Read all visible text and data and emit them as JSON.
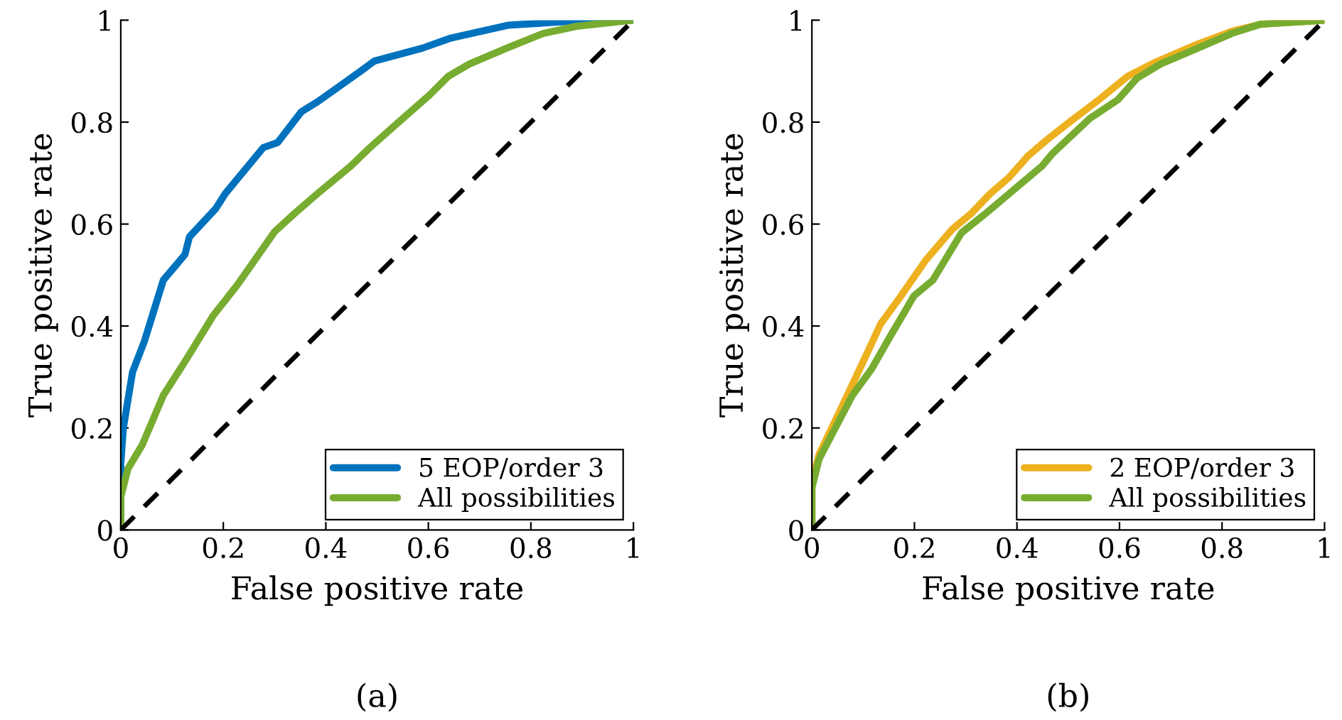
{
  "chart_data": [
    {
      "type": "line",
      "xlabel": "False positive rate",
      "ylabel": "True positive rate",
      "annotations": [
        "(a)"
      ],
      "xlim": [
        0,
        1
      ],
      "ylim": [
        0,
        1
      ],
      "xticks": [
        0,
        0.2,
        0.4,
        0.6,
        0.8,
        1
      ],
      "yticks": [
        0,
        0.2,
        0.4,
        0.6,
        0.8,
        1
      ],
      "grid": false,
      "legend": "bottom right",
      "marker": "none",
      "series": [
        {
          "name": "5 EOP/order 3",
          "color": "#0072bd",
          "line_style": "solid",
          "x": [
            0,
            0,
            0.005,
            0.023,
            0.046,
            0.083,
            0.125,
            0.134,
            0.185,
            0.204,
            0.278,
            0.306,
            0.352,
            0.384,
            0.426,
            0.468,
            0.495,
            0.588,
            0.644,
            0.755,
            0.866,
            1
          ],
          "values": [
            0,
            0.13,
            0.2,
            0.31,
            0.37,
            0.49,
            0.54,
            0.575,
            0.63,
            0.66,
            0.75,
            0.76,
            0.82,
            0.84,
            0.87,
            0.9,
            0.92,
            0.945,
            0.965,
            0.99,
            0.997,
            1
          ]
        },
        {
          "name": "All possibilities",
          "color": "#77ac30",
          "line_style": "solid",
          "x": [
            0,
            0,
            0.014,
            0.042,
            0.083,
            0.125,
            0.18,
            0.227,
            0.255,
            0.3,
            0.338,
            0.384,
            0.449,
            0.486,
            0.542,
            0.602,
            0.639,
            0.68,
            0.755,
            0.824,
            0.889,
            1
          ],
          "values": [
            0,
            0.065,
            0.12,
            0.167,
            0.264,
            0.33,
            0.42,
            0.48,
            0.52,
            0.585,
            0.62,
            0.66,
            0.714,
            0.75,
            0.8,
            0.853,
            0.89,
            0.914,
            0.946,
            0.974,
            0.988,
            1
          ]
        },
        {
          "color": "#000000",
          "line_style": "dashed",
          "x": [
            0,
            1
          ],
          "values": [
            0,
            1
          ]
        }
      ]
    },
    {
      "type": "line",
      "xlabel": "False positive rate",
      "ylabel": "True positive rate",
      "annotations": [
        "(b)"
      ],
      "xlim": [
        0,
        1
      ],
      "ylim": [
        0,
        1
      ],
      "xticks": [
        0,
        0.2,
        0.4,
        0.6,
        0.8,
        1
      ],
      "yticks": [
        0,
        0.2,
        0.4,
        0.6,
        0.8,
        1
      ],
      "grid": false,
      "legend": "bottom right",
      "marker": "none",
      "series": [
        {
          "name": "2 EOP/order 3",
          "color": "#edb120",
          "line_style": "solid",
          "x": [
            0,
            0,
            0.014,
            0.069,
            0.106,
            0.134,
            0.171,
            0.222,
            0.273,
            0.31,
            0.347,
            0.384,
            0.421,
            0.458,
            0.505,
            0.56,
            0.616,
            0.671,
            0.745,
            0.819,
            0.875,
            1
          ],
          "values": [
            0,
            0.093,
            0.148,
            0.264,
            0.343,
            0.404,
            0.455,
            0.529,
            0.589,
            0.62,
            0.659,
            0.691,
            0.733,
            0.765,
            0.802,
            0.844,
            0.89,
            0.918,
            0.95,
            0.978,
            0.992,
            1
          ]
        },
        {
          "name": "All possibilities",
          "color": "#77ac30",
          "line_style": "solid",
          "x": [
            0,
            0,
            0.014,
            0.079,
            0.116,
            0.153,
            0.199,
            0.236,
            0.292,
            0.338,
            0.384,
            0.449,
            0.468,
            0.542,
            0.597,
            0.634,
            0.68,
            0.755,
            0.819,
            0.875,
            1
          ],
          "values": [
            0,
            0.083,
            0.139,
            0.264,
            0.315,
            0.38,
            0.459,
            0.49,
            0.583,
            0.62,
            0.659,
            0.714,
            0.737,
            0.807,
            0.844,
            0.886,
            0.914,
            0.946,
            0.974,
            0.992,
            1
          ]
        },
        {
          "color": "#000000",
          "line_style": "dashed",
          "x": [
            0,
            1
          ],
          "values": [
            0,
            1
          ]
        }
      ]
    }
  ]
}
